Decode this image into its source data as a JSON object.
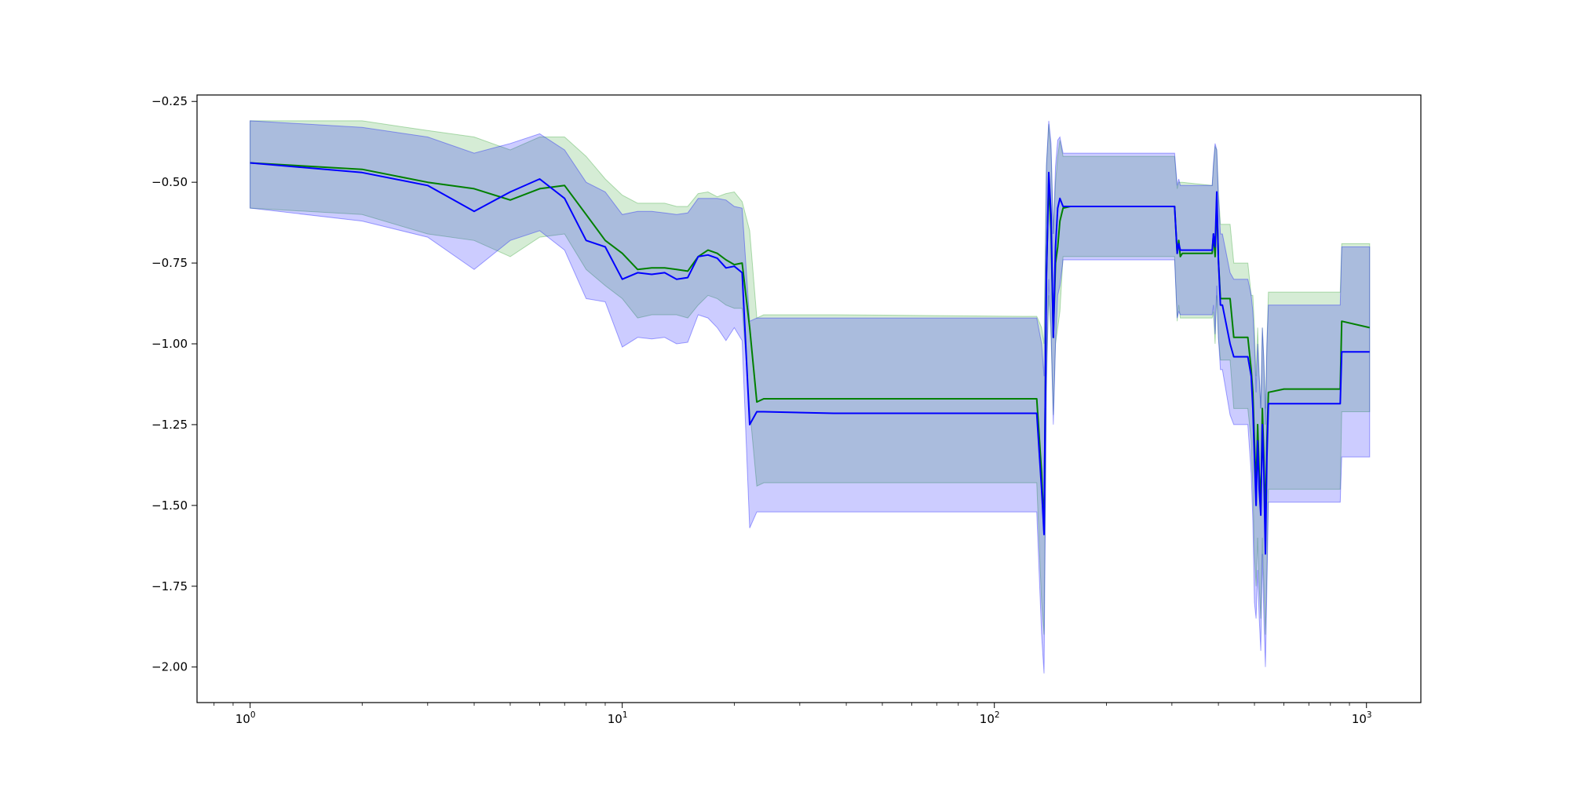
{
  "chart_data": {
    "type": "line",
    "title": "",
    "xlabel": "",
    "ylabel": "",
    "xscale": "log",
    "xlim": [
      0.72,
      1400
    ],
    "ylim": [
      -2.11,
      -0.23
    ],
    "grid": false,
    "x_ticks": [
      {
        "value": 1,
        "mant": "10",
        "exp": "0"
      },
      {
        "value": 10,
        "mant": "10",
        "exp": "1"
      },
      {
        "value": 100,
        "mant": "10",
        "exp": "2"
      },
      {
        "value": 1000,
        "mant": "10",
        "exp": "3"
      }
    ],
    "y_ticks": [
      {
        "value": -0.25,
        "label": "−0.25"
      },
      {
        "value": -0.5,
        "label": "−0.50"
      },
      {
        "value": -0.75,
        "label": "−0.75"
      },
      {
        "value": -1.0,
        "label": "−1.00"
      },
      {
        "value": -1.25,
        "label": "−1.25"
      },
      {
        "value": -1.5,
        "label": "−1.50"
      },
      {
        "value": -1.75,
        "label": "−1.75"
      },
      {
        "value": -2.0,
        "label": "−2.00"
      }
    ],
    "series": [
      {
        "color": "#008000",
        "band_color": "#2ca02c",
        "points": [
          [
            1,
            -0.44,
            -0.58,
            -0.31
          ],
          [
            2,
            -0.46,
            -0.6,
            -0.31
          ],
          [
            3,
            -0.5,
            -0.66,
            -0.34
          ],
          [
            4,
            -0.52,
            -0.68,
            -0.36
          ],
          [
            5,
            -0.555,
            -0.73,
            -0.4
          ],
          [
            6,
            -0.52,
            -0.67,
            -0.36
          ],
          [
            7,
            -0.51,
            -0.66,
            -0.36
          ],
          [
            8,
            -0.6,
            -0.77,
            -0.42
          ],
          [
            9,
            -0.68,
            -0.82,
            -0.49
          ],
          [
            10,
            -0.72,
            -0.86,
            -0.54
          ],
          [
            11,
            -0.77,
            -0.92,
            -0.565
          ],
          [
            12,
            -0.765,
            -0.91,
            -0.565
          ],
          [
            13,
            -0.765,
            -0.91,
            -0.565
          ],
          [
            14,
            -0.77,
            -0.91,
            -0.575
          ],
          [
            15,
            -0.775,
            -0.92,
            -0.575
          ],
          [
            16,
            -0.73,
            -0.88,
            -0.535
          ],
          [
            17,
            -0.71,
            -0.85,
            -0.53
          ],
          [
            18,
            -0.72,
            -0.86,
            -0.545
          ],
          [
            19,
            -0.74,
            -0.88,
            -0.535
          ],
          [
            20,
            -0.755,
            -0.89,
            -0.53
          ],
          [
            21,
            -0.75,
            -0.89,
            -0.56
          ],
          [
            22,
            -0.95,
            -1.2,
            -0.65
          ],
          [
            23,
            -1.18,
            -1.44,
            -0.92
          ],
          [
            24,
            -1.17,
            -1.43,
            -0.91
          ],
          [
            37,
            -1.17,
            -1.43,
            -0.91
          ],
          [
            120,
            -1.17,
            -1.43,
            -0.915
          ],
          [
            130,
            -1.17,
            -1.43,
            -0.915
          ],
          [
            134,
            -1.4,
            -1.8,
            -0.95
          ],
          [
            136,
            -1.58,
            -1.9,
            -1.0
          ],
          [
            138,
            -0.78,
            -1.1,
            -0.45
          ],
          [
            140,
            -0.5,
            -0.85,
            -0.32
          ],
          [
            142,
            -0.65,
            -0.98,
            -0.4
          ],
          [
            144,
            -0.98,
            -1.22,
            -0.66
          ],
          [
            146,
            -0.75,
            -1.0,
            -0.5
          ],
          [
            148,
            -0.7,
            -0.95,
            -0.42
          ],
          [
            150,
            -0.62,
            -0.9,
            -0.37
          ],
          [
            153,
            -0.58,
            -0.73,
            -0.42
          ],
          [
            160,
            -0.575,
            -0.73,
            -0.42
          ],
          [
            305,
            -0.575,
            -0.73,
            -0.42
          ],
          [
            310,
            -0.72,
            -0.93,
            -0.52
          ],
          [
            313,
            -0.68,
            -0.88,
            -0.5
          ],
          [
            316,
            -0.73,
            -0.92,
            -0.5
          ],
          [
            320,
            -0.72,
            -0.92,
            -0.5
          ],
          [
            385,
            -0.72,
            -0.92,
            -0.51
          ],
          [
            388,
            -0.66,
            -0.9,
            -0.45
          ],
          [
            392,
            -0.73,
            -1.0,
            -0.39
          ],
          [
            396,
            -0.55,
            -0.85,
            -0.4
          ],
          [
            400,
            -0.74,
            -0.98,
            -0.53
          ],
          [
            405,
            -0.86,
            -1.05,
            -0.63
          ],
          [
            410,
            -0.86,
            -1.05,
            -0.63
          ],
          [
            430,
            -0.86,
            -1.05,
            -0.63
          ],
          [
            440,
            -0.98,
            -1.2,
            -0.75
          ],
          [
            470,
            -0.98,
            -1.2,
            -0.75
          ],
          [
            480,
            -0.98,
            -1.2,
            -0.75
          ],
          [
            490,
            -1.08,
            -1.3,
            -0.85
          ],
          [
            495,
            -1.15,
            -1.45,
            -0.85
          ],
          [
            500,
            -1.3,
            -1.65,
            -0.95
          ],
          [
            505,
            -1.45,
            -1.75,
            -1.1
          ],
          [
            510,
            -1.25,
            -1.6,
            -0.95
          ],
          [
            515,
            -1.4,
            -1.75,
            -1.1
          ],
          [
            520,
            -1.5,
            -1.85,
            -1.2
          ],
          [
            525,
            -1.2,
            -1.6,
            -0.95
          ],
          [
            530,
            -1.35,
            -1.75,
            -1.05
          ],
          [
            535,
            -1.55,
            -1.9,
            -1.2
          ],
          [
            540,
            -1.3,
            -1.7,
            -1.0
          ],
          [
            545,
            -1.15,
            -1.45,
            -0.84
          ],
          [
            600,
            -1.14,
            -1.45,
            -0.84
          ],
          [
            850,
            -1.14,
            -1.45,
            -0.84
          ],
          [
            858,
            -0.93,
            -1.21,
            -0.69
          ],
          [
            1020,
            -0.95,
            -1.21,
            -0.69
          ]
        ]
      },
      {
        "color": "#0000ff",
        "band_color": "#0000ff",
        "points": [
          [
            1,
            -0.44,
            -0.58,
            -0.31
          ],
          [
            2,
            -0.47,
            -0.62,
            -0.33
          ],
          [
            3,
            -0.51,
            -0.67,
            -0.36
          ],
          [
            4,
            -0.59,
            -0.77,
            -0.41
          ],
          [
            5,
            -0.53,
            -0.68,
            -0.38
          ],
          [
            6,
            -0.49,
            -0.65,
            -0.35
          ],
          [
            7,
            -0.55,
            -0.71,
            -0.4
          ],
          [
            8,
            -0.68,
            -0.86,
            -0.5
          ],
          [
            9,
            -0.7,
            -0.87,
            -0.53
          ],
          [
            10,
            -0.8,
            -1.01,
            -0.6
          ],
          [
            11,
            -0.78,
            -0.98,
            -0.59
          ],
          [
            12,
            -0.785,
            -0.985,
            -0.59
          ],
          [
            13,
            -0.78,
            -0.98,
            -0.595
          ],
          [
            14,
            -0.8,
            -1.0,
            -0.6
          ],
          [
            15,
            -0.795,
            -0.995,
            -0.595
          ],
          [
            16,
            -0.73,
            -0.91,
            -0.55
          ],
          [
            17,
            -0.725,
            -0.92,
            -0.55
          ],
          [
            18,
            -0.735,
            -0.95,
            -0.55
          ],
          [
            19,
            -0.765,
            -0.99,
            -0.555
          ],
          [
            20,
            -0.76,
            -0.95,
            -0.575
          ],
          [
            21,
            -0.78,
            -0.99,
            -0.58
          ],
          [
            22,
            -1.25,
            -1.57,
            -0.93
          ],
          [
            23,
            -1.21,
            -1.52,
            -0.92
          ],
          [
            24,
            -1.21,
            -1.52,
            -0.92
          ],
          [
            37,
            -1.215,
            -1.52,
            -0.92
          ],
          [
            120,
            -1.215,
            -1.52,
            -0.92
          ],
          [
            130,
            -1.215,
            -1.52,
            -0.92
          ],
          [
            134,
            -1.45,
            -1.9,
            -1.0
          ],
          [
            136,
            -1.59,
            -2.02,
            -1.1
          ],
          [
            138,
            -0.8,
            -1.15,
            -0.45
          ],
          [
            140,
            -0.47,
            -0.8,
            -0.31
          ],
          [
            142,
            -0.6,
            -0.95,
            -0.38
          ],
          [
            144,
            -0.98,
            -1.25,
            -0.66
          ],
          [
            146,
            -0.7,
            -1.0,
            -0.45
          ],
          [
            148,
            -0.58,
            -0.85,
            -0.37
          ],
          [
            150,
            -0.55,
            -0.82,
            -0.36
          ],
          [
            153,
            -0.575,
            -0.74,
            -0.41
          ],
          [
            160,
            -0.575,
            -0.74,
            -0.41
          ],
          [
            305,
            -0.575,
            -0.74,
            -0.41
          ],
          [
            310,
            -0.72,
            -0.92,
            -0.51
          ],
          [
            313,
            -0.69,
            -0.9,
            -0.49
          ],
          [
            316,
            -0.71,
            -0.91,
            -0.51
          ],
          [
            320,
            -0.71,
            -0.91,
            -0.51
          ],
          [
            385,
            -0.71,
            -0.91,
            -0.51
          ],
          [
            388,
            -0.66,
            -0.88,
            -0.44
          ],
          [
            392,
            -0.7,
            -0.97,
            -0.38
          ],
          [
            396,
            -0.53,
            -0.82,
            -0.4
          ],
          [
            400,
            -0.74,
            -0.98,
            -0.54
          ],
          [
            405,
            -0.88,
            -1.08,
            -0.66
          ],
          [
            410,
            -0.88,
            -1.08,
            -0.66
          ],
          [
            430,
            -1.0,
            -1.22,
            -0.78
          ],
          [
            440,
            -1.04,
            -1.25,
            -0.8
          ],
          [
            470,
            -1.04,
            -1.25,
            -0.8
          ],
          [
            480,
            -1.04,
            -1.25,
            -0.8
          ],
          [
            490,
            -1.1,
            -1.4,
            -0.85
          ],
          [
            495,
            -1.2,
            -1.55,
            -0.9
          ],
          [
            500,
            -1.35,
            -1.8,
            -1.0
          ],
          [
            505,
            -1.5,
            -1.85,
            -1.15
          ],
          [
            510,
            -1.3,
            -1.7,
            -1.0
          ],
          [
            515,
            -1.45,
            -1.85,
            -1.1
          ],
          [
            520,
            -1.53,
            -1.95,
            -1.2
          ],
          [
            525,
            -1.25,
            -1.65,
            -0.95
          ],
          [
            530,
            -1.4,
            -1.85,
            -1.05
          ],
          [
            535,
            -1.65,
            -2.0,
            -1.25
          ],
          [
            540,
            -1.35,
            -1.75,
            -1.0
          ],
          [
            545,
            -1.185,
            -1.49,
            -0.88
          ],
          [
            600,
            -1.185,
            -1.49,
            -0.88
          ],
          [
            850,
            -1.185,
            -1.49,
            -0.88
          ],
          [
            858,
            -1.025,
            -1.35,
            -0.7
          ],
          [
            1020,
            -1.025,
            -1.35,
            -0.7
          ]
        ]
      }
    ]
  }
}
